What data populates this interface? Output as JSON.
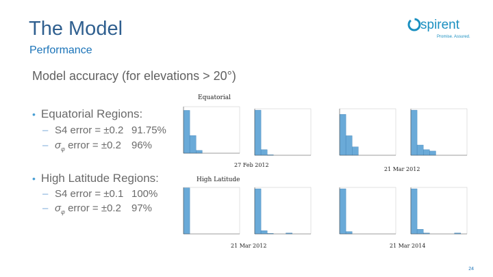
{
  "header": {
    "title": "The Model",
    "subtitle": "Performance",
    "logo_text": "spirent",
    "logo_tagline": "Promise. Assured."
  },
  "heading": "Model accuracy (for elevations > 20°)",
  "sections": [
    {
      "label": "Equatorial Regions:",
      "items": [
        {
          "metric": "S4 error = ±0.2",
          "value": "91.75%"
        },
        {
          "metric_prefix": "σ",
          "metric_sub": "φ",
          "metric": " error = ±0.2",
          "value": "96%"
        }
      ]
    },
    {
      "label": "High Latitude Regions:",
      "items": [
        {
          "metric": "S4 error = ±0.1",
          "value": "100%"
        },
        {
          "metric_prefix": "σ",
          "metric_sub": "φ",
          "metric": " error = ±0.2",
          "value": "97%"
        }
      ]
    }
  ],
  "figure": {
    "equatorial_label": "Equatorial",
    "high_latitude_label": "High Latitude",
    "dates": [
      "27 Feb 2012",
      "21 Mar 2012",
      "21 Mar 2012",
      "21 Mar 2014"
    ]
  },
  "colors": {
    "bar": "#6aaad8",
    "accent": "#1a73b8",
    "logo": "#1a8fc0"
  },
  "chart_data": [
    {
      "type": "bar",
      "values": [
        0.92,
        0.38,
        0.06,
        0.0,
        0.0,
        0.0,
        0.0,
        0.0,
        0.0
      ]
    },
    {
      "type": "bar",
      "values": [
        0.97,
        0.12,
        0.01,
        0.0,
        0.0,
        0.0,
        0.0,
        0.0,
        0.0
      ]
    },
    {
      "type": "bar",
      "values": [
        0.88,
        0.42,
        0.18,
        0.0,
        0.0,
        0.0,
        0.0,
        0.0,
        0.0
      ]
    },
    {
      "type": "bar",
      "values": [
        0.97,
        0.22,
        0.12,
        0.09,
        0.0,
        0.0,
        0.0,
        0.0,
        0.0
      ]
    },
    {
      "type": "bar",
      "values": [
        0.99,
        0.0,
        0.0,
        0.0,
        0.0,
        0.0,
        0.0,
        0.0,
        0.0
      ]
    },
    {
      "type": "bar",
      "values": [
        0.97,
        0.07,
        0.01,
        0.0,
        0.0,
        0.02,
        0.0,
        0.0,
        0.0
      ]
    },
    {
      "type": "bar",
      "values": [
        0.97,
        0.05,
        0.0,
        0.0,
        0.0,
        0.0,
        0.0,
        0.0,
        0.0
      ]
    },
    {
      "type": "bar",
      "values": [
        0.97,
        0.1,
        0.02,
        0.0,
        0.0,
        0.0,
        0.0,
        0.02,
        0.0
      ]
    }
  ],
  "page_number": "24"
}
